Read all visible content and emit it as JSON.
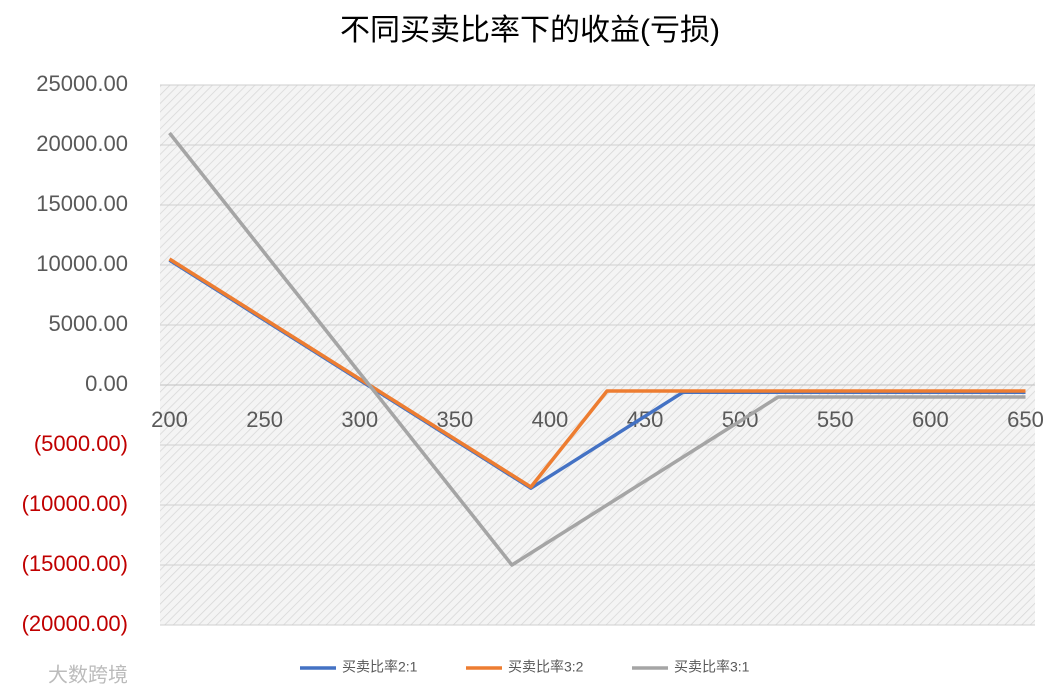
{
  "chart_data": {
    "type": "line",
    "title": "不同买卖比率下的收益(亏损)",
    "watermark": "大数跨境",
    "x": [
      200,
      210,
      220,
      230,
      240,
      250,
      260,
      270,
      280,
      290,
      300,
      310,
      320,
      330,
      340,
      350,
      360,
      370,
      380,
      390,
      400,
      410,
      420,
      430,
      440,
      450,
      460,
      470,
      480,
      490,
      500,
      510,
      520,
      530,
      540,
      550,
      560,
      570,
      580,
      590,
      600,
      610,
      620,
      630,
      640,
      650
    ],
    "xlim": [
      195,
      655
    ],
    "xticks": [
      200,
      250,
      300,
      350,
      400,
      450,
      500,
      550,
      600,
      650
    ],
    "ylim": [
      -20000,
      25000
    ],
    "yticks": [
      {
        "value": 25000,
        "label": "25000.00"
      },
      {
        "value": 20000,
        "label": "20000.00"
      },
      {
        "value": 15000,
        "label": "15000.00"
      },
      {
        "value": 10000,
        "label": "10000.00"
      },
      {
        "value": 5000,
        "label": "5000.00"
      },
      {
        "value": 0,
        "label": "0.00"
      },
      {
        "value": -5000,
        "label": "(5000.00)"
      },
      {
        "value": -10000,
        "label": "(10000.00)"
      },
      {
        "value": -15000,
        "label": "(15000.00)"
      },
      {
        "value": -20000,
        "label": "(20000.00)"
      }
    ],
    "negative_label_color": "#c00000",
    "grid": true,
    "legend": "bottom",
    "series": [
      {
        "name": "买卖比率2:1",
        "color": "#4472c4",
        "values": [
          10400,
          9400,
          8400,
          7400,
          6400,
          5400,
          4400,
          3400,
          2400,
          1400,
          400,
          -600,
          -1600,
          -2600,
          -3600,
          -4600,
          -5600,
          -6600,
          -7600,
          -8600,
          -7600,
          -6600,
          -5600,
          -4600,
          -3600,
          -2600,
          -1600,
          -600,
          -600,
          -600,
          -600,
          -600,
          -600,
          -600,
          -600,
          -600,
          -600,
          -600,
          -600,
          -600,
          -600,
          -600,
          -600,
          -600,
          -600,
          -600
        ]
      },
      {
        "name": "买卖比率3:2",
        "color": "#ed7d31",
        "values": [
          10500,
          9500,
          8500,
          7500,
          6500,
          5500,
          4500,
          3500,
          2500,
          1500,
          500,
          -500,
          -1500,
          -2500,
          -3500,
          -4500,
          -5500,
          -6500,
          -7500,
          -8500,
          -6500,
          -4500,
          -2500,
          -500,
          -500,
          -500,
          -500,
          -500,
          -500,
          -500,
          -500,
          -500,
          -500,
          -500,
          -500,
          -500,
          -500,
          -500,
          -500,
          -500,
          -500,
          -500,
          -500,
          -500,
          -500,
          -500
        ]
      },
      {
        "name": "买卖比率3:1",
        "color": "#a5a5a5",
        "values": [
          21000,
          19000,
          17000,
          15000,
          13000,
          11000,
          9000,
          7000,
          5000,
          3000,
          1000,
          -1000,
          -3000,
          -5000,
          -7000,
          -9000,
          -11000,
          -13000,
          -15000,
          -14000,
          -13000,
          -12000,
          -11000,
          -10000,
          -9000,
          -8000,
          -7000,
          -6000,
          -5000,
          -4000,
          -3000,
          -2000,
          -1000,
          -1000,
          -1000,
          -1000,
          -1000,
          -1000,
          -1000,
          -1000,
          -1000,
          -1000,
          -1000,
          -1000,
          -1000,
          -1000
        ]
      }
    ]
  }
}
